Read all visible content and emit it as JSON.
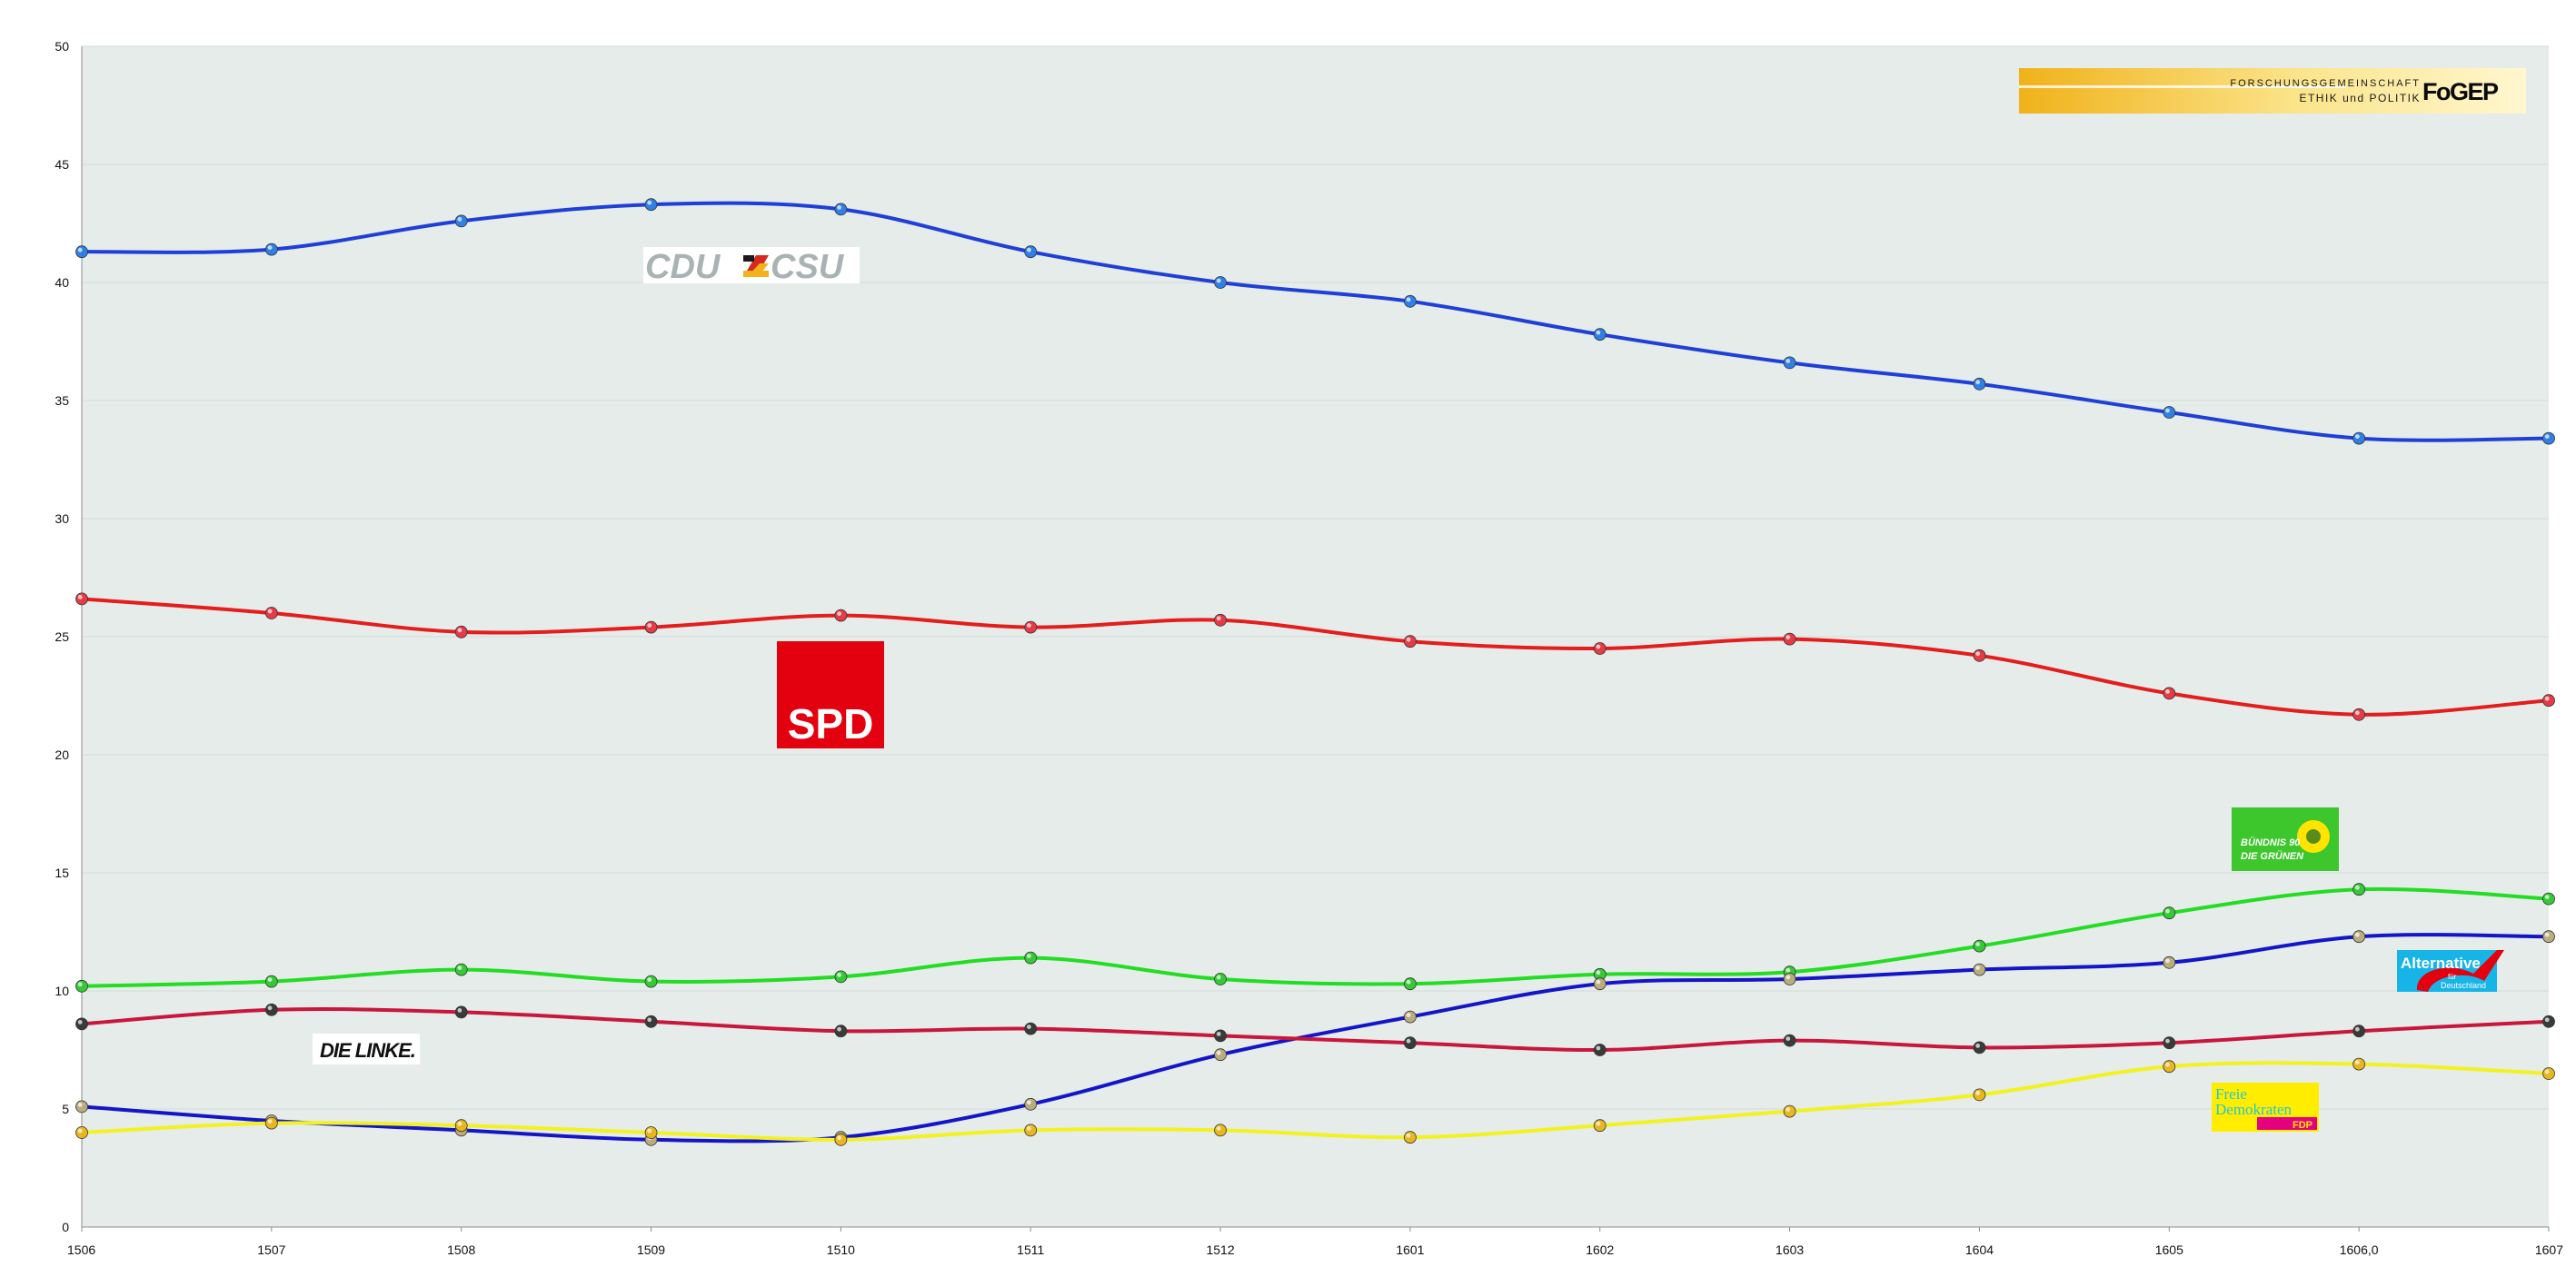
{
  "chart_data": {
    "type": "line",
    "title": "",
    "xlabel": "",
    "ylabel": "",
    "x": [
      "1506",
      "1507",
      "1508",
      "1509",
      "1510",
      "1511",
      "1512",
      "1601",
      "1602",
      "1603",
      "1604",
      "1605",
      "1606,0",
      "1607"
    ],
    "ylim": [
      0,
      50
    ],
    "yticks": [
      "0",
      "5",
      "10",
      "15",
      "20",
      "25",
      "30",
      "35",
      "40",
      "45",
      "50"
    ],
    "grid": true,
    "smooth": true,
    "series": [
      {
        "key": "cdu",
        "color": "#1f3fd6",
        "marker": "#2f7fe6",
        "values": [
          41.3,
          41.4,
          42.6,
          43.3,
          43.1,
          41.3,
          40.0,
          39.2,
          37.8,
          36.6,
          35.7,
          34.5,
          33.4,
          33.4
        ]
      },
      {
        "key": "spd",
        "color": "#e41d1d",
        "marker": "#e43b47",
        "values": [
          26.6,
          26.0,
          25.2,
          25.4,
          25.9,
          25.4,
          25.7,
          24.8,
          24.5,
          24.9,
          24.2,
          22.6,
          21.7,
          22.3
        ]
      },
      {
        "key": "gruene",
        "color": "#22dd22",
        "marker": "#36c936",
        "values": [
          10.2,
          10.4,
          10.9,
          10.4,
          10.6,
          11.4,
          10.5,
          10.3,
          10.7,
          10.8,
          11.9,
          13.3,
          14.3,
          13.9
        ]
      },
      {
        "key": "afd",
        "color": "#1515c8",
        "marker": "#b9ac7e",
        "values": [
          5.1,
          4.5,
          4.1,
          3.7,
          3.8,
          5.2,
          7.3,
          8.9,
          10.3,
          10.5,
          10.9,
          11.2,
          12.3,
          12.3
        ]
      },
      {
        "key": "linke",
        "color": "#c8163c",
        "marker": "#3a3a3a",
        "values": [
          8.6,
          9.2,
          9.1,
          8.7,
          8.3,
          8.4,
          8.1,
          7.8,
          7.5,
          7.9,
          7.6,
          7.8,
          8.3,
          8.7
        ]
      },
      {
        "key": "fdp",
        "color": "#f2f21e",
        "marker": "#e9b61f",
        "values": [
          4.0,
          4.4,
          4.3,
          4.0,
          3.7,
          4.1,
          4.1,
          3.8,
          4.3,
          4.9,
          5.6,
          6.8,
          6.9,
          6.5
        ]
      }
    ],
    "party_labels": {
      "cdu_left": "CDU",
      "cdu_right": "CSU",
      "spd": "SPD",
      "linke": "DIE LINKE.",
      "gruene_line1": "BÜNDNIS 90",
      "gruene_line2": "DIE GRÜNEN",
      "afd_line1": "Alternative",
      "afd_line2": "für",
      "afd_line3": "Deutschland",
      "fdp_line1": "Freie",
      "fdp_line2": "Demokraten",
      "fdp_line3": "FDP"
    },
    "brand": {
      "line1": "FORSCHUNGSGEMEINSCHAFT",
      "line2": "ETHIK und POLITIK",
      "mark": "FoGEP"
    }
  }
}
